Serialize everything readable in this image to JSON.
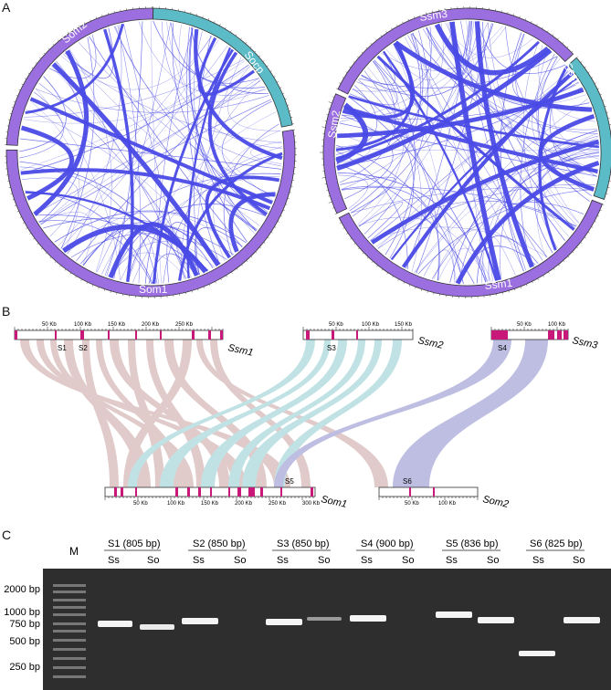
{
  "panels": {
    "a": "A",
    "b": "B",
    "c": "C"
  },
  "circos_left": {
    "segments": [
      {
        "label": "Som2",
        "color": "#9b6fe0"
      },
      {
        "label": "Socp",
        "color": "#5bbcc8"
      },
      {
        "label": "Som1",
        "color": "#9b6fe0"
      }
    ],
    "link_color": "#4a4ae6"
  },
  "circos_right": {
    "segments": [
      {
        "label": "Ssm3",
        "color": "#9b6fe0"
      },
      {
        "label": "Sscp",
        "color": "#5bbcc8"
      },
      {
        "label": "Ssm2",
        "color": "#9b6fe0"
      },
      {
        "label": "Ssm1",
        "color": "#9b6fe0"
      }
    ],
    "link_color": "#4a4ae6"
  },
  "synteny": {
    "top_tracks": [
      {
        "name": "Ssm1",
        "ticks": [
          "50 Kb",
          "100 Kb",
          "150 Kb",
          "200 Kb",
          "250 Kb"
        ]
      },
      {
        "name": "Ssm2",
        "ticks": [
          "50 Kb",
          "100 Kb",
          "150 Kb"
        ]
      },
      {
        "name": "Ssm3",
        "ticks": [
          "50 Kb",
          "100 Kb"
        ]
      }
    ],
    "bottom_tracks": [
      {
        "name": "Som1",
        "ticks": [
          "50 Kb",
          "100 Kb",
          "150 Kb",
          "200 Kb",
          "250 Kb",
          "300 Kb"
        ]
      },
      {
        "name": "Som2",
        "ticks": [
          "50 Kb",
          "100 Kb"
        ]
      }
    ],
    "markers_top": [
      "S1",
      "S2",
      "S3",
      "S4"
    ],
    "markers_bottom": [
      "S5",
      "S6"
    ],
    "colors": {
      "ssm1": "#c9a0a0",
      "ssm2": "#8fcbd0",
      "ssm3": "#8a8acb",
      "gene": "#c8197a"
    }
  },
  "gel": {
    "ladder_label": "M",
    "ladder_sizes": [
      "2000 bp",
      "1000 bp",
      "750 bp",
      "500 bp",
      "250 bp"
    ],
    "samples": [
      {
        "title": "S1 (805 bp)",
        "lanes": [
          "Ss",
          "So"
        ]
      },
      {
        "title": "S2 (850 bp)",
        "lanes": [
          "Ss",
          "So"
        ]
      },
      {
        "title": "S3 (850 bp)",
        "lanes": [
          "Ss",
          "So"
        ]
      },
      {
        "title": "S4 (900 bp)",
        "lanes": [
          "Ss",
          "So"
        ]
      },
      {
        "title": "S5 (836 bp)",
        "lanes": [
          "Ss",
          "So"
        ]
      },
      {
        "title": "S6 (825 bp)",
        "lanes": [
          "Ss",
          "So"
        ]
      }
    ]
  }
}
